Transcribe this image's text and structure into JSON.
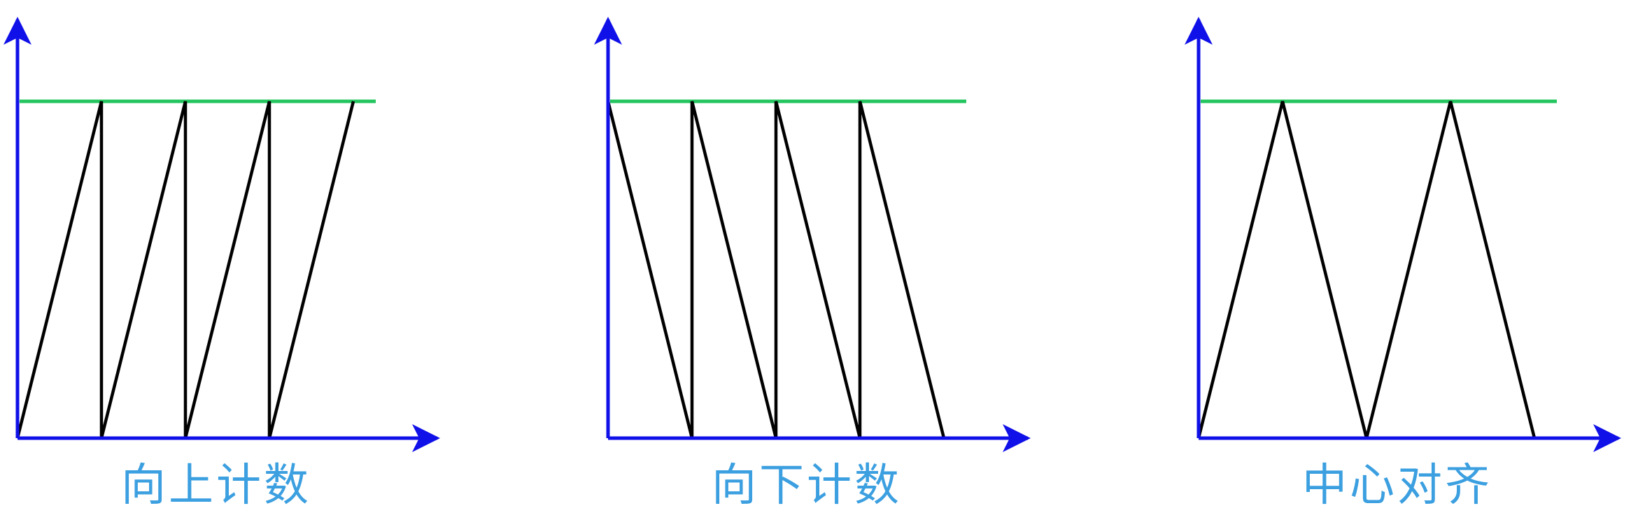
{
  "colors": {
    "axis": "#1010e8",
    "threshold": "#22c55e",
    "wave": "#000000",
    "caption": "#3b9fe0"
  },
  "diagrams": [
    {
      "id": "count-up",
      "caption": "向上计数",
      "wave": [
        [
          0,
          0
        ],
        [
          1,
          1
        ],
        [
          1,
          0
        ],
        [
          2,
          1
        ],
        [
          2,
          0
        ],
        [
          3,
          1
        ],
        [
          3,
          0
        ],
        [
          4,
          1
        ]
      ]
    },
    {
      "id": "count-down",
      "caption": "向下计数",
      "wave": [
        [
          0,
          1
        ],
        [
          1,
          0
        ],
        [
          1,
          1
        ],
        [
          2,
          0
        ],
        [
          2,
          1
        ],
        [
          3,
          0
        ],
        [
          3,
          1
        ],
        [
          4,
          0
        ]
      ]
    },
    {
      "id": "center-aligned",
      "caption": "中心对齐",
      "wave": [
        [
          0,
          0
        ],
        [
          1,
          1
        ],
        [
          2,
          0
        ],
        [
          3,
          1
        ],
        [
          4,
          0
        ]
      ]
    }
  ]
}
